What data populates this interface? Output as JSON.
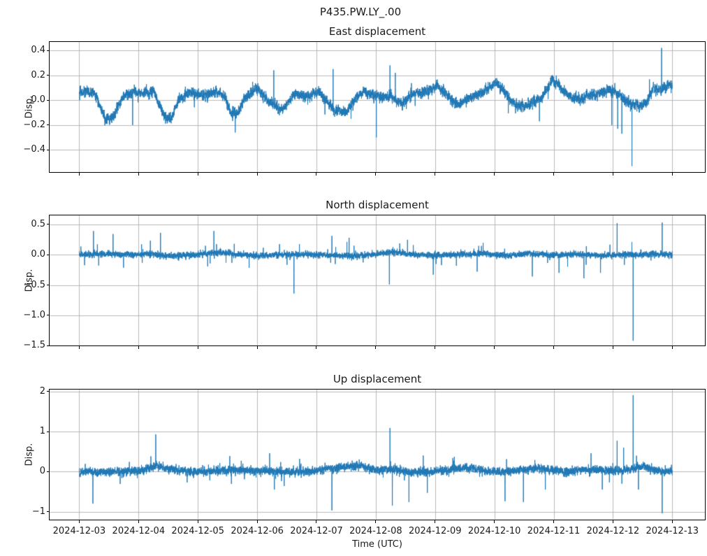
{
  "suptitle": "P435.PW.LY_.00",
  "xaxis": {
    "label": "Time (UTC)",
    "tick_labels": [
      "2024-12-03",
      "2024-12-04",
      "2024-12-05",
      "2024-12-06",
      "2024-12-07",
      "2024-12-08",
      "2024-12-09",
      "2024-12-10",
      "2024-12-11",
      "2024-12-12",
      "2024-12-13"
    ],
    "tick_values": [
      0,
      1,
      2,
      3,
      4,
      5,
      6,
      7,
      8,
      9,
      10
    ],
    "xlim": [
      -0.5,
      10.55
    ]
  },
  "style": {
    "line_color": "#1f77b4",
    "grid_color": "#b0b0b0",
    "spine_color": "#000000",
    "text_color": "#1a1a1a",
    "background": "#ffffff"
  },
  "chart_data": [
    {
      "type": "line",
      "title": "East displacement",
      "ylabel": "Disp.",
      "ylim": [
        -0.578,
        0.468
      ],
      "yticks": [
        0.4,
        0.2,
        0.0,
        -0.2,
        -0.4
      ],
      "ytick_labels": [
        "0.4",
        "0.2",
        "0.0",
        "−0.2",
        "−0.4"
      ],
      "x_range_days": [
        0,
        10
      ],
      "grid": true,
      "legend": "none",
      "trend": [
        [
          0,
          0.07
        ],
        [
          0.25,
          0.065
        ],
        [
          0.44,
          -0.15
        ],
        [
          0.55,
          -0.16
        ],
        [
          0.73,
          0.02
        ],
        [
          0.85,
          0.06
        ],
        [
          1.1,
          0.06
        ],
        [
          1.26,
          0.07
        ],
        [
          1.44,
          -0.14
        ],
        [
          1.55,
          -0.15
        ],
        [
          1.67,
          -0.01
        ],
        [
          1.85,
          0.06
        ],
        [
          2.1,
          0.04
        ],
        [
          2.3,
          0.07
        ],
        [
          2.45,
          0.03
        ],
        [
          2.56,
          -0.1
        ],
        [
          2.67,
          -0.11
        ],
        [
          2.79,
          0.02
        ],
        [
          3.0,
          0.1
        ],
        [
          3.14,
          0.02
        ],
        [
          3.32,
          -0.06
        ],
        [
          3.44,
          -0.07
        ],
        [
          3.62,
          0.05
        ],
        [
          3.85,
          0.02
        ],
        [
          4.03,
          0.075
        ],
        [
          4.3,
          -0.08
        ],
        [
          4.5,
          -0.1
        ],
        [
          4.62,
          -0.01
        ],
        [
          4.79,
          0.07
        ],
        [
          5.03,
          0.03
        ],
        [
          5.26,
          0.03
        ],
        [
          5.44,
          -0.03
        ],
        [
          5.62,
          0.05
        ],
        [
          5.85,
          0.07
        ],
        [
          6.03,
          0.12
        ],
        [
          6.21,
          0.03
        ],
        [
          6.38,
          -0.04
        ],
        [
          6.56,
          0.02
        ],
        [
          6.8,
          0.06
        ],
        [
          7.03,
          0.14
        ],
        [
          7.21,
          0.05
        ],
        [
          7.38,
          -0.05
        ],
        [
          7.56,
          -0.04
        ],
        [
          7.8,
          0.02
        ],
        [
          7.97,
          0.16
        ],
        [
          8.09,
          0.12
        ],
        [
          8.27,
          0.03
        ],
        [
          8.44,
          0.01
        ],
        [
          8.68,
          0.05
        ],
        [
          8.92,
          0.08
        ],
        [
          9.09,
          0.05
        ],
        [
          9.27,
          -0.03
        ],
        [
          9.45,
          -0.05
        ],
        [
          9.56,
          -0.03
        ],
        [
          9.68,
          0.1
        ],
        [
          9.8,
          0.08
        ],
        [
          9.98,
          0.13
        ]
      ],
      "noise": {
        "amp": 0.018,
        "rho": 0.5,
        "spike_prob": 0.0025,
        "spike_mag": 0.12
      },
      "spikes": [
        [
          0.9,
          -0.2
        ],
        [
          2.63,
          -0.26
        ],
        [
          3.28,
          0.24
        ],
        [
          4.28,
          0.25
        ],
        [
          5.01,
          -0.3
        ],
        [
          5.24,
          0.28
        ],
        [
          5.33,
          0.22
        ],
        [
          7.76,
          -0.17
        ],
        [
          8.98,
          -0.2
        ],
        [
          9.08,
          -0.23
        ],
        [
          9.15,
          -0.27
        ],
        [
          9.32,
          -0.53
        ],
        [
          9.82,
          0.42
        ]
      ],
      "seed": 42
    },
    {
      "type": "line",
      "title": "North displacement",
      "ylabel": "Disp.",
      "ylim": [
        -1.4975,
        0.6475
      ],
      "yticks": [
        0.5,
        0.0,
        -0.5,
        -1.0,
        -1.5
      ],
      "ytick_labels": [
        "0.5",
        "0.0",
        "−0.5",
        "−1.0",
        "−1.5"
      ],
      "x_range_days": [
        0,
        10
      ],
      "grid": true,
      "legend": "none",
      "trend": [
        [
          0,
          0.0
        ],
        [
          0.4,
          0.01
        ],
        [
          0.8,
          0.0
        ],
        [
          1.2,
          0.01
        ],
        [
          1.6,
          -0.02
        ],
        [
          2.0,
          0.0
        ],
        [
          2.3,
          0.04
        ],
        [
          2.6,
          0.01
        ],
        [
          3.0,
          -0.02
        ],
        [
          3.4,
          0.0
        ],
        [
          3.8,
          0.01
        ],
        [
          4.2,
          -0.01
        ],
        [
          4.6,
          -0.02
        ],
        [
          5.0,
          0.01
        ],
        [
          5.3,
          0.05
        ],
        [
          5.6,
          0.01
        ],
        [
          6.0,
          -0.01
        ],
        [
          6.4,
          0.0
        ],
        [
          6.8,
          0.02
        ],
        [
          7.2,
          -0.02
        ],
        [
          7.6,
          0.02
        ],
        [
          8.0,
          -0.01
        ],
        [
          8.4,
          0.01
        ],
        [
          8.8,
          -0.02
        ],
        [
          9.2,
          0.0
        ],
        [
          9.6,
          0.01
        ],
        [
          10,
          0.0
        ]
      ],
      "noise": {
        "amp": 0.022,
        "rho": 0.4,
        "spike_prob": 0.006,
        "spike_mag": 0.22
      },
      "spikes": [
        [
          0.24,
          0.39
        ],
        [
          0.57,
          0.34
        ],
        [
          1.37,
          0.36
        ],
        [
          2.27,
          0.39
        ],
        [
          3.62,
          -0.64
        ],
        [
          4.26,
          0.31
        ],
        [
          4.55,
          0.28
        ],
        [
          5.23,
          -0.49
        ],
        [
          5.97,
          -0.33
        ],
        [
          6.71,
          -0.28
        ],
        [
          7.64,
          -0.36
        ],
        [
          8.09,
          -0.3
        ],
        [
          8.51,
          -0.39
        ],
        [
          8.79,
          -0.3
        ],
        [
          9.07,
          0.52
        ],
        [
          9.34,
          -1.42
        ],
        [
          9.83,
          0.53
        ]
      ],
      "seed": 7
    },
    {
      "type": "line",
      "title": "Up displacement",
      "ylabel": "Disp.",
      "ylim": [
        -1.2,
        2.05
      ],
      "yticks": [
        2,
        1,
        0,
        -1
      ],
      "ytick_labels": [
        "2",
        "1",
        "0",
        "−1"
      ],
      "x_range_days": [
        0,
        10
      ],
      "grid": true,
      "legend": "none",
      "trend": [
        [
          0,
          -0.05
        ],
        [
          0.1,
          0.0
        ],
        [
          0.5,
          -0.01
        ],
        [
          0.9,
          0.0
        ],
        [
          1.1,
          0.05
        ],
        [
          1.3,
          0.14
        ],
        [
          1.5,
          0.08
        ],
        [
          1.8,
          0.0
        ],
        [
          2.2,
          0.01
        ],
        [
          2.7,
          0.04
        ],
        [
          3.0,
          0.02
        ],
        [
          3.5,
          -0.01
        ],
        [
          3.9,
          0.0
        ],
        [
          4.2,
          0.06
        ],
        [
          4.55,
          0.13
        ],
        [
          4.8,
          0.14
        ],
        [
          5.0,
          0.04
        ],
        [
          5.3,
          0.04
        ],
        [
          5.6,
          -0.01
        ],
        [
          5.9,
          0.0
        ],
        [
          6.2,
          0.04
        ],
        [
          6.55,
          0.1
        ],
        [
          6.8,
          0.02
        ],
        [
          7.1,
          -0.01
        ],
        [
          7.45,
          0.05
        ],
        [
          7.75,
          0.1
        ],
        [
          8.0,
          0.03
        ],
        [
          8.3,
          0.0
        ],
        [
          8.55,
          0.07
        ],
        [
          8.8,
          0.04
        ],
        [
          9.1,
          0.01
        ],
        [
          9.35,
          0.08
        ],
        [
          9.55,
          0.13
        ],
        [
          9.75,
          0.02
        ],
        [
          10,
          0.0
        ]
      ],
      "noise": {
        "amp": 0.045,
        "rho": 0.45,
        "spike_prob": 0.005,
        "spike_mag": 0.3
      },
      "spikes": [
        [
          0.23,
          -0.8
        ],
        [
          1.29,
          0.93
        ],
        [
          3.21,
          0.46
        ],
        [
          3.29,
          -0.45
        ],
        [
          4.26,
          -0.97
        ],
        [
          5.24,
          1.09
        ],
        [
          5.28,
          -0.85
        ],
        [
          5.56,
          -0.76
        ],
        [
          5.87,
          -0.53
        ],
        [
          6.3,
          0.34
        ],
        [
          7.18,
          -0.74
        ],
        [
          7.49,
          -0.76
        ],
        [
          7.86,
          -0.45
        ],
        [
          8.63,
          0.46
        ],
        [
          8.82,
          -0.45
        ],
        [
          8.94,
          -0.27
        ],
        [
          9.07,
          0.77
        ],
        [
          9.18,
          0.6
        ],
        [
          9.34,
          1.91
        ],
        [
          9.43,
          -0.45
        ],
        [
          9.83,
          -1.04
        ]
      ],
      "seed": 99
    }
  ]
}
